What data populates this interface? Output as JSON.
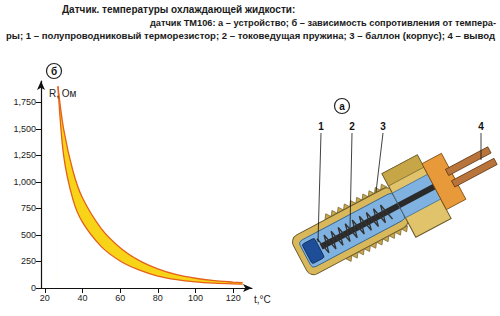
{
  "caption": {
    "title": "Датчик. температуры охлаждающей жидкости:",
    "lines": [
      "датчик ТМ106: а – устройство; б – зависимость сопротивления от темпера-",
      "ры; 1 – полупроводниковый терморезистор; 2 – токоведущая пружина; 3 – баллон (корпус); 4 – вывод"
    ]
  },
  "chart_data": {
    "type": "band",
    "panel_label": "б",
    "xlabel": "t,°C",
    "ylabel": "R, Ом",
    "x": [
      27,
      30,
      35,
      40,
      50,
      60,
      70,
      80,
      90,
      100,
      110,
      120,
      125
    ],
    "series": [
      {
        "values": [
          1900,
          1500,
          1100,
          850,
          560,
          380,
          260,
          180,
          125,
          92,
          70,
          56,
          50
        ]
      },
      {
        "values": [
          1900,
          1250,
          830,
          620,
          390,
          255,
          170,
          112,
          78,
          57,
          45,
          38,
          36
        ]
      }
    ],
    "color": "#f7d417",
    "xlim": [
      18,
      130
    ],
    "ylim": [
      0,
      1950
    ],
    "xticks": [
      20,
      40,
      60,
      80,
      100,
      120
    ],
    "yticks": [
      0,
      250,
      500,
      750,
      1000,
      1250,
      1500,
      1750
    ],
    "grid": false
  },
  "diagram": {
    "panel_label": "а",
    "labels": [
      "1",
      "2",
      "3",
      "4"
    ]
  }
}
